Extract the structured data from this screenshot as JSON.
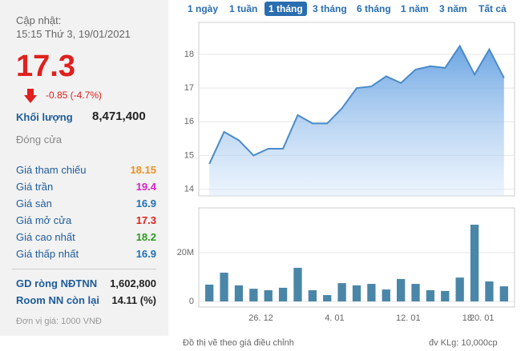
{
  "panel": {
    "update_label": "Cập nhật:",
    "update_time": "15:15 Thứ 3, 19/01/2021",
    "price": "17.3",
    "change": "-0.85 (-4.7%)",
    "volume_label": "Khối lượng",
    "volume": "8,471,400",
    "status": "Đóng cửa",
    "rows": [
      {
        "label": "Giá tham chiếu",
        "value": "18.15",
        "color": "#f0901e"
      },
      {
        "label": "Giá trần",
        "value": "19.4",
        "color": "#d620c8"
      },
      {
        "label": "Giá sàn",
        "value": "16.9",
        "color": "#1f6fb8"
      },
      {
        "label": "Giá mở cửa",
        "value": "17.3",
        "color": "#e0201e"
      },
      {
        "label": "Giá cao nhất",
        "value": "18.2",
        "color": "#2a9a1e"
      },
      {
        "label": "Giá thấp nhất",
        "value": "16.9",
        "color": "#1f6fb8"
      }
    ],
    "rows2": [
      {
        "label": "GD ròng NĐTNN",
        "value": "1,602,800"
      },
      {
        "label": "Room NN còn lại",
        "value": "14.11 (%)"
      }
    ],
    "unit": "Đơn vị giá: 1000 VNĐ"
  },
  "tabs": [
    "1 ngày",
    "1 tuần",
    "1 tháng",
    "3 tháng",
    "6 tháng",
    "1 năm",
    "3 năm",
    "Tất cả"
  ],
  "active_tab": 2,
  "chart_data": [
    {
      "type": "area",
      "color": "#4a8bc8",
      "categories": [
        null,
        null,
        null,
        null,
        null,
        null,
        null,
        null,
        null,
        null,
        null,
        null,
        null,
        null,
        null,
        null,
        null,
        null,
        null,
        null,
        null
      ],
      "values": [
        14.75,
        15.7,
        15.45,
        15.0,
        15.2,
        15.2,
        16.2,
        15.95,
        15.95,
        16.4,
        17.0,
        17.05,
        17.35,
        17.15,
        17.55,
        17.65,
        17.6,
        18.25,
        17.4,
        18.15,
        17.3
      ],
      "ylim": [
        13.8,
        18.95
      ],
      "yticks": [
        14,
        15,
        16,
        17,
        18
      ]
    },
    {
      "type": "bar",
      "color": "#4a86a8",
      "categories": [
        null,
        null,
        null,
        null,
        "26. 12",
        null,
        null,
        null,
        null,
        "4. 01",
        null,
        null,
        null,
        null,
        "12. 01",
        null,
        null,
        null,
        "18",
        "20. 01",
        null
      ],
      "values": [
        6.9,
        11.8,
        6.6,
        5.2,
        4.6,
        5.6,
        13.8,
        4.6,
        2.6,
        7.5,
        6.6,
        7.2,
        4.9,
        9.2,
        7.2,
        4.6,
        4.3,
        9.8,
        31.5,
        8.2,
        6.2
      ],
      "ylim": [
        -2.3,
        38.4
      ],
      "yticks": [
        0,
        {
          "value": 20,
          "label": "20M"
        }
      ]
    }
  ],
  "footer_left": "Đồ thị vẽ theo giá điều chỉnh",
  "footer_right": "đv KLg: 10,000cp"
}
